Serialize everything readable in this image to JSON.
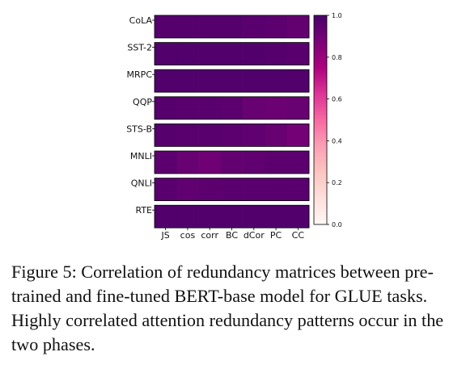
{
  "chart_data": {
    "type": "heatmap",
    "rows": [
      "CoLA",
      "SST-2",
      "MRPC",
      "QQP",
      "STS-B",
      "MNLI",
      "QNLI",
      "RTE"
    ],
    "columns": [
      "JS",
      "cos",
      "corr",
      "BC",
      "dCor",
      "PC",
      "CC"
    ],
    "values": [
      [
        0.97,
        0.97,
        0.97,
        0.97,
        0.96,
        0.95,
        0.93
      ],
      [
        0.98,
        0.98,
        0.98,
        0.98,
        0.98,
        0.97,
        0.96
      ],
      [
        0.98,
        0.98,
        0.98,
        0.98,
        0.98,
        0.98,
        0.98
      ],
      [
        0.97,
        0.96,
        0.96,
        0.95,
        0.92,
        0.91,
        0.92
      ],
      [
        0.97,
        0.96,
        0.96,
        0.95,
        0.94,
        0.92,
        0.89
      ],
      [
        0.95,
        0.92,
        0.9,
        0.93,
        0.94,
        0.95,
        0.95
      ],
      [
        0.96,
        0.94,
        0.95,
        0.96,
        0.96,
        0.96,
        0.96
      ],
      [
        0.98,
        0.98,
        0.98,
        0.98,
        0.98,
        0.98,
        0.98
      ]
    ],
    "colorbar": {
      "range": [
        0.0,
        1.0
      ],
      "ticks": [
        "0.0",
        "0.2",
        "0.4",
        "0.6",
        "0.8",
        "1.0"
      ],
      "colormap": "RdPu"
    }
  },
  "caption": "Figure 5: Correlation of redundancy matrices between pre-trained and fine-tuned BERT-base model for GLUE tasks. Highly correlated attention redundancy patterns occur in the two phases."
}
